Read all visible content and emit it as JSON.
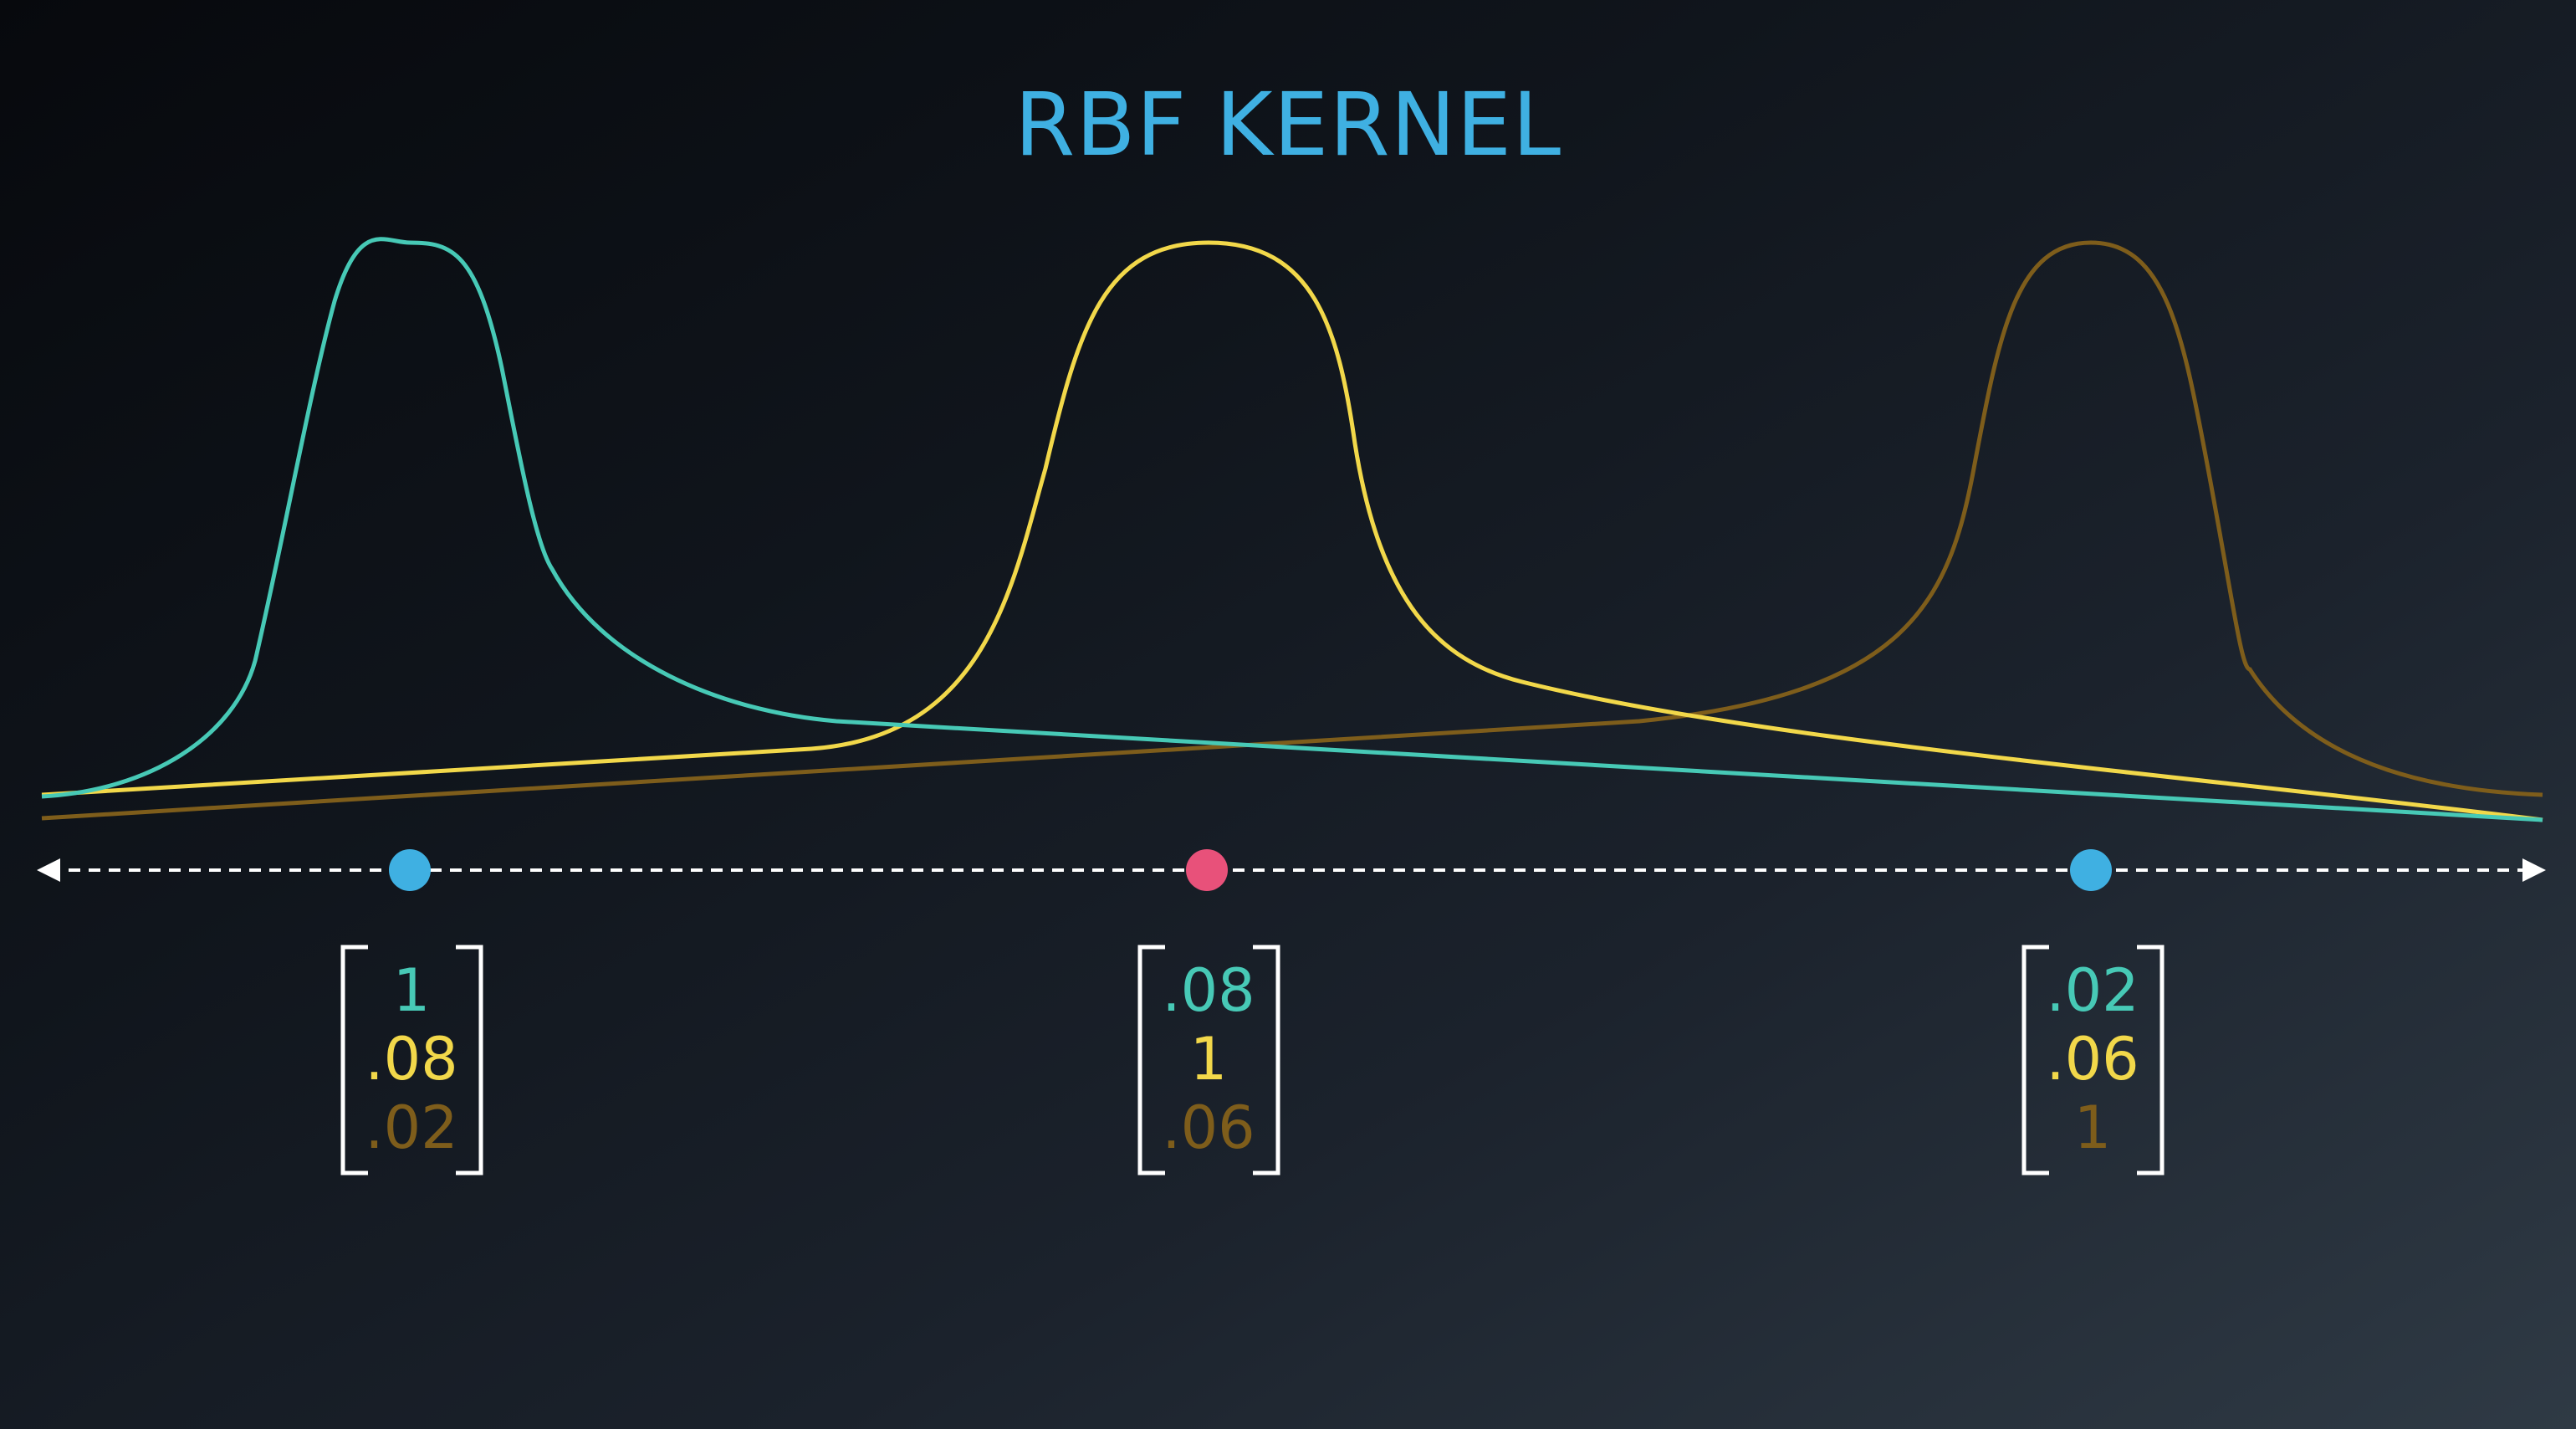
{
  "title": "RBF KERNEL",
  "colors": {
    "teal": "#47c9b6",
    "yellow": "#f2d84a",
    "brown": "#7e5d1b",
    "blue_point": "#3fb0e2",
    "pink_point": "#e8517a",
    "axis": "#ffffff"
  },
  "points": [
    {
      "name": "point-left",
      "color": "blue_point",
      "vector": [
        "1",
        ".08",
        ".02"
      ]
    },
    {
      "name": "point-middle",
      "color": "pink_point",
      "vector": [
        ".08",
        "1",
        ".06"
      ]
    },
    {
      "name": "point-right",
      "color": "blue_point",
      "vector": [
        ".02",
        ".06",
        "1"
      ]
    }
  ],
  "vector_colors": [
    "teal",
    "yellow",
    "brown"
  ]
}
